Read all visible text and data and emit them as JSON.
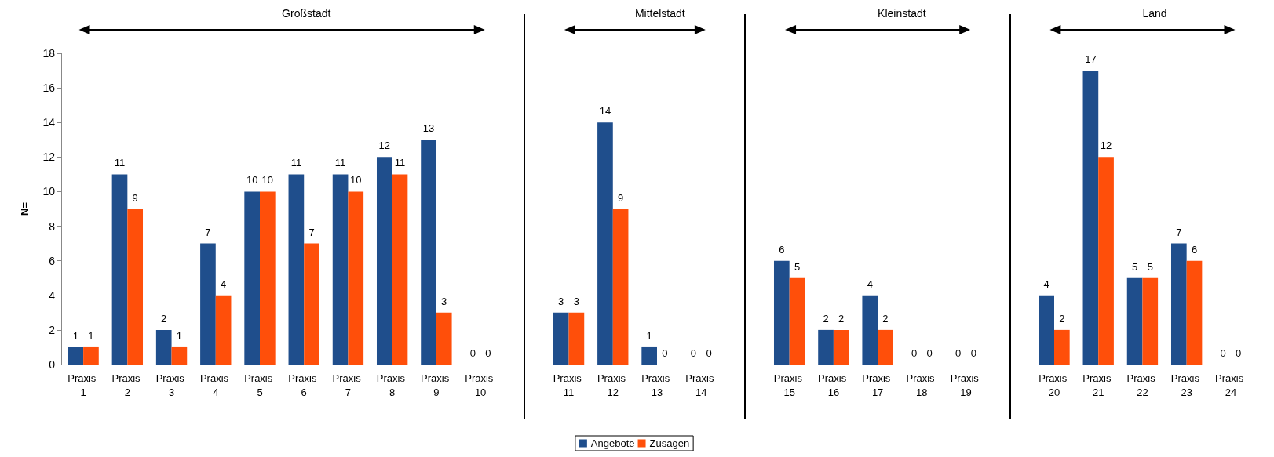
{
  "chart_data": {
    "type": "bar",
    "ylabel": "N=",
    "annotations": [
      "Großstadt",
      "Mittelstadt",
      "Kleinstadt",
      "Land"
    ],
    "categories": [
      "Praxis 1",
      "Praxis 2",
      "Praxis 3",
      "Praxis 4",
      "Praxis 5",
      "Praxis 6",
      "Praxis 7",
      "Praxis 8",
      "Praxis 9",
      "Praxis 10",
      null,
      "Praxis 11",
      "Praxis 12",
      "Praxis 13",
      "Praxis 14",
      null,
      "Praxis 15",
      "Praxis 16",
      "Praxis 17",
      "Praxis 18",
      "Praxis 19",
      null,
      "Praxis 20",
      "Praxis 21",
      "Praxis 22",
      "Praxis 23",
      "Praxis 24"
    ],
    "series": [
      {
        "name": "Angebote",
        "color": "#1f4e8c",
        "values": [
          1,
          11,
          2,
          7,
          10,
          11,
          11,
          12,
          13,
          0,
          null,
          3,
          14,
          1,
          0,
          null,
          6,
          2,
          4,
          0,
          0,
          null,
          4,
          17,
          5,
          7,
          0
        ]
      },
      {
        "name": "Zusagen",
        "color": "#ff4f0a",
        "values": [
          1,
          9,
          1,
          4,
          10,
          7,
          10,
          11,
          3,
          0,
          null,
          3,
          9,
          0,
          0,
          null,
          5,
          2,
          2,
          0,
          0,
          null,
          2,
          12,
          5,
          6,
          0
        ]
      }
    ],
    "ylim": [
      0,
      18
    ],
    "yticks": [
      0,
      2,
      4,
      6,
      8,
      10,
      12,
      14,
      16,
      18
    ],
    "grid": false,
    "legend": "bottom",
    "data_labels": true
  }
}
